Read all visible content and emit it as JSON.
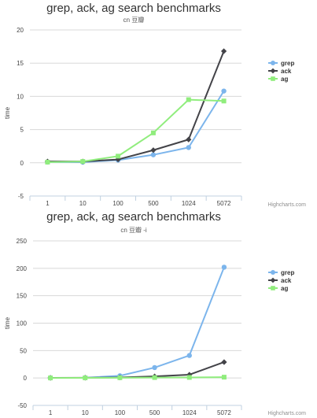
{
  "colors": {
    "grep": "#7cb5ec",
    "ack": "#434348",
    "ag": "#90ed7d"
  },
  "chart_data": [
    {
      "type": "line",
      "title": "grep, ack, ag search benchmarks",
      "subtitle": "cn 豆瓣",
      "xlabel": "",
      "ylabel": "time",
      "categories": [
        "1",
        "10",
        "100",
        "500",
        "1024",
        "5072"
      ],
      "ylim": [
        -5,
        20
      ],
      "yticks": [
        -5,
        0,
        5,
        10,
        15,
        20
      ],
      "grid": true,
      "legend_placement": "right",
      "credits": "Highcharts.com",
      "series": [
        {
          "name": "grep",
          "values": [
            0.1,
            0.1,
            0.4,
            1.2,
            2.3,
            10.8
          ]
        },
        {
          "name": "ack",
          "values": [
            0.2,
            0.2,
            0.5,
            1.9,
            3.5,
            16.8
          ]
        },
        {
          "name": "ag",
          "values": [
            0.1,
            0.2,
            1.0,
            4.5,
            9.5,
            9.3
          ]
        }
      ]
    },
    {
      "type": "line",
      "title": "grep, ack, ag search benchmarks",
      "subtitle": "cn 豆瓣 -i",
      "xlabel": "",
      "ylabel": "time",
      "categories": [
        "1",
        "10",
        "100",
        "500",
        "1024",
        "5072"
      ],
      "ylim": [
        -50,
        250
      ],
      "yticks": [
        -50,
        0,
        50,
        100,
        150,
        200,
        250
      ],
      "grid": true,
      "legend_placement": "right",
      "credits": "Highcharts.com",
      "series": [
        {
          "name": "grep",
          "values": [
            0.3,
            0.5,
            4,
            19,
            41,
            202
          ]
        },
        {
          "name": "ack",
          "values": [
            0.2,
            0.4,
            1,
            3,
            6,
            29
          ]
        },
        {
          "name": "ag",
          "values": [
            0.1,
            0.2,
            0.5,
            0.8,
            1,
            1.5
          ]
        }
      ]
    }
  ]
}
